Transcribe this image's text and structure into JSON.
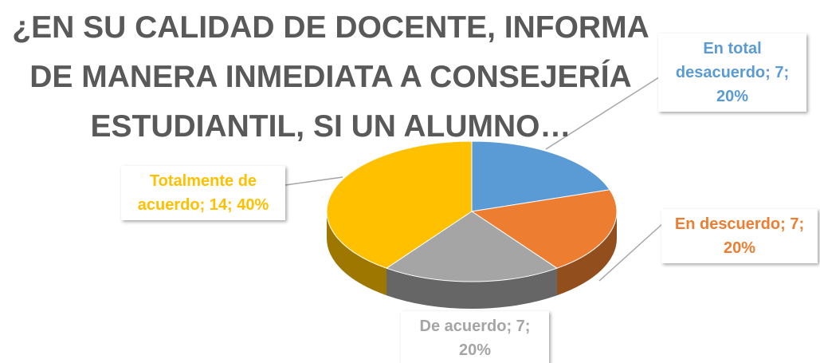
{
  "chart_data": {
    "type": "pie",
    "title": "¿EN SU CALIDAD DE DOCENTE, INFORMA DE MANERA INMEDIATA A CONSEJERÍA ESTUDIANTIL, SI UN ALUMNO…",
    "labels": [
      "En total desacuerdo; 7; 20%",
      "En descuerdo; 7; 20%",
      "De acuerdo; 7; 20%",
      "Totalmente de acuerdo; 14; 40%"
    ],
    "values": [
      7,
      7,
      7,
      14
    ],
    "colors": [
      "#5b9bd5",
      "#ed7d31",
      "#a5a5a5",
      "#ffc000"
    ]
  }
}
